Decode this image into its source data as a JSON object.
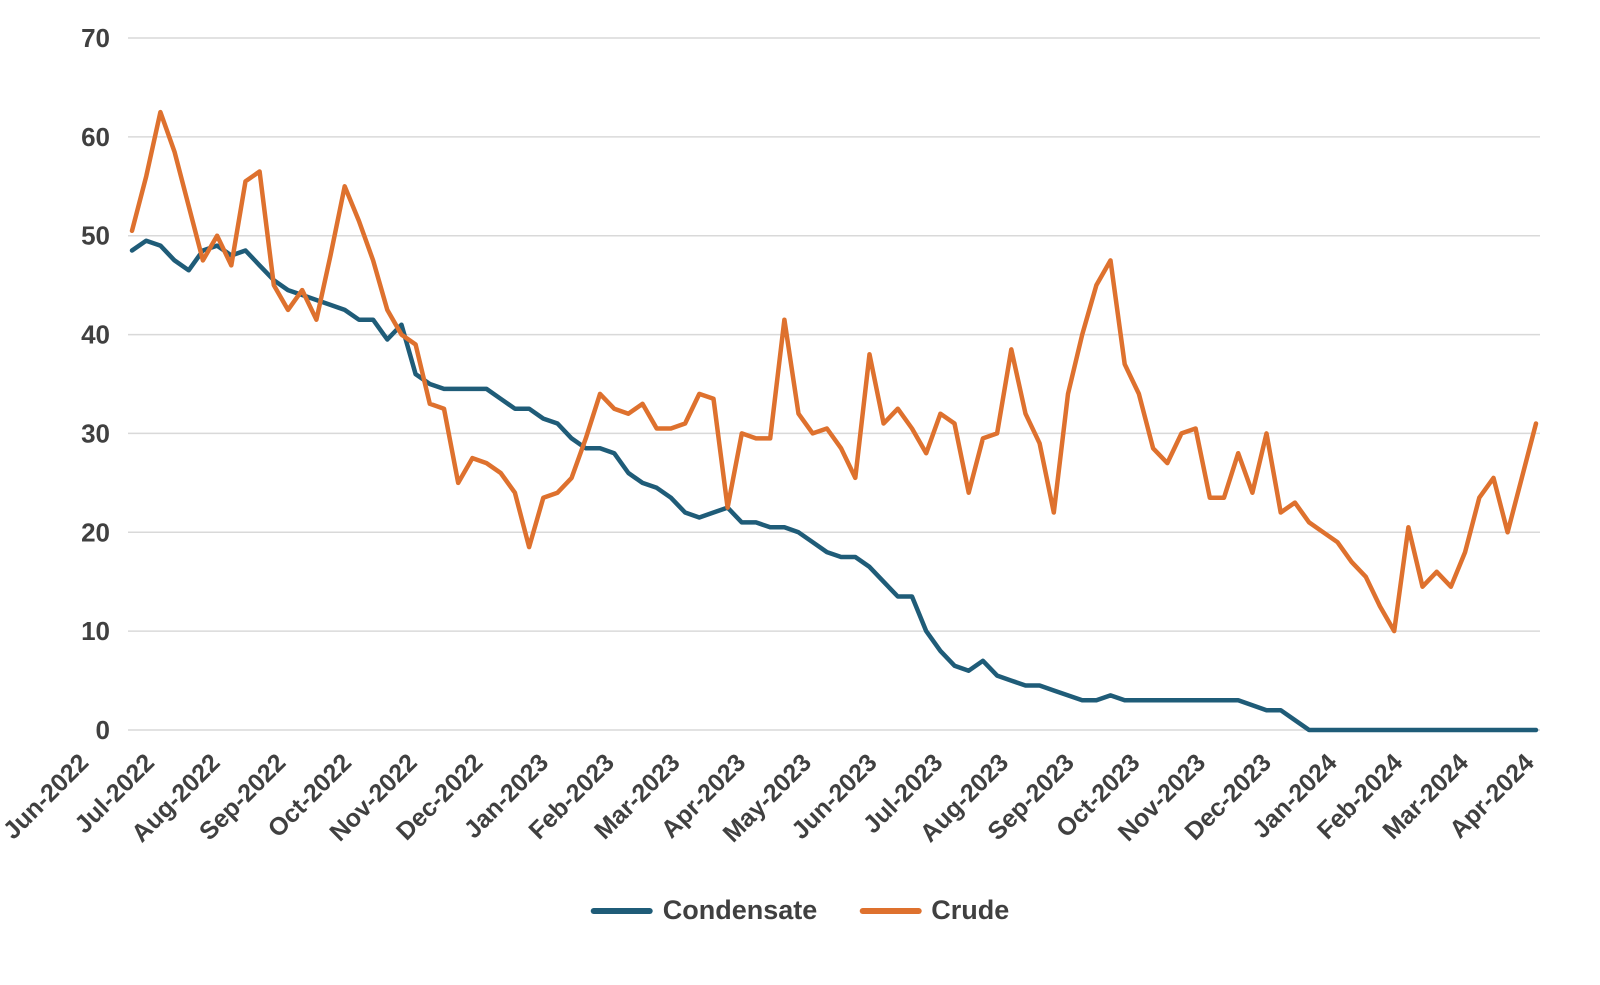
{
  "chart_data": {
    "type": "line",
    "title": "",
    "xlabel": "",
    "ylabel": "",
    "x_unit": "weekly observations",
    "x_tick_labels": [
      "Jun-2022",
      "Jul-2022",
      "Aug-2022",
      "Sep-2022",
      "Oct-2022",
      "Nov-2022",
      "Dec-2022",
      "Jan-2023",
      "Feb-2023",
      "Mar-2023",
      "Apr-2023",
      "May-2023",
      "Jun-2023",
      "Jul-2023",
      "Aug-2023",
      "Sep-2023",
      "Oct-2023",
      "Nov-2023",
      "Dec-2023",
      "Jan-2024",
      "Feb-2024",
      "Mar-2024",
      "Apr-2024"
    ],
    "y_ticks": [
      0,
      10,
      20,
      30,
      40,
      50,
      60,
      70
    ],
    "ylim": [
      0,
      70
    ],
    "grid": "horizontal-only",
    "grid_color": "#d9d9d9",
    "axis_text_color": "#404040",
    "background_color": "#ffffff",
    "legend_position": "bottom-center",
    "n_points": 100,
    "series": [
      {
        "name": "Condensate",
        "color": "#1f5c78",
        "values": [
          48.5,
          49.5,
          49,
          47.5,
          46.5,
          48.5,
          49,
          48,
          48.5,
          47,
          45.5,
          44.5,
          44,
          43.5,
          43,
          42.5,
          41.5,
          41.5,
          39.5,
          41,
          36,
          35,
          34.5,
          34.5,
          34.5,
          34.5,
          33.5,
          32.5,
          32.5,
          31.5,
          31,
          29.5,
          28.5,
          28.5,
          28,
          26,
          25,
          24.5,
          23.5,
          22,
          21.5,
          22,
          22.5,
          21,
          21,
          20.5,
          20.5,
          20,
          19,
          18,
          17.5,
          17.5,
          16.5,
          15,
          13.5,
          13.5,
          10,
          8,
          6.5,
          6,
          7,
          5.5,
          5,
          4.5,
          4.5,
          4,
          3.5,
          3,
          3,
          3.5,
          3,
          3,
          3,
          3,
          3,
          3,
          3,
          3,
          3,
          2.5,
          2,
          2,
          1,
          0,
          0,
          0,
          0,
          0,
          0,
          0,
          0,
          0,
          0,
          0,
          0,
          0,
          0,
          0,
          0,
          0
        ]
      },
      {
        "name": "Crude",
        "color": "#de712e",
        "values": [
          50.5,
          56,
          62.5,
          58.5,
          53,
          47.5,
          50,
          47,
          55.5,
          56.5,
          45,
          42.5,
          44.5,
          41.5,
          48,
          55,
          51.5,
          47.5,
          42.5,
          40,
          39,
          33,
          32.5,
          25,
          27.5,
          27,
          26,
          24,
          18.5,
          23.5,
          24,
          25.5,
          29.5,
          34,
          32.5,
          32,
          33,
          30.5,
          30.5,
          31,
          34,
          33.5,
          22.5,
          30,
          29.5,
          29.5,
          41.5,
          32,
          30,
          30.5,
          28.5,
          25.5,
          38,
          31,
          32.5,
          30.5,
          28,
          32,
          31,
          24,
          29.5,
          30,
          38.5,
          32,
          29,
          22,
          34,
          40,
          45,
          47.5,
          37,
          34,
          28.5,
          27,
          30,
          30.5,
          23.5,
          23.5,
          28,
          24,
          30,
          22,
          23,
          21,
          20,
          19,
          17,
          15.5,
          12.5,
          10,
          20.5,
          14.5,
          16,
          14.5,
          18,
          23.5,
          25.5,
          20,
          25.5,
          31
        ]
      }
    ]
  }
}
